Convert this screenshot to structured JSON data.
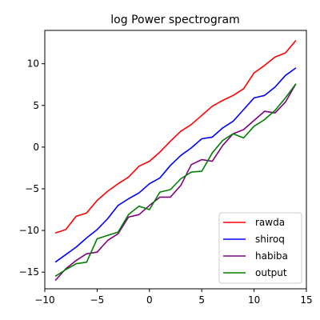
{
  "chart_data": {
    "type": "line",
    "title": "log Power spectrogram",
    "xlabel": "",
    "ylabel": "",
    "xlim": [
      -10,
      15
    ],
    "ylim": [
      -17,
      14
    ],
    "xticks": [
      -10,
      -5,
      0,
      5,
      10,
      15
    ],
    "yticks": [
      -15,
      -10,
      -5,
      0,
      5,
      10
    ],
    "grid": false,
    "legend": "bottom-right",
    "x": [
      -9,
      -8,
      -7,
      -6,
      -5,
      -4,
      -3,
      -2,
      -1,
      0,
      1,
      2,
      3,
      4,
      5,
      6,
      7,
      8,
      9,
      10,
      11,
      12,
      13,
      14
    ],
    "series": [
      {
        "name": "rawda",
        "color": "#ff0000",
        "values": [
          -10.3,
          -9.9,
          -8.3,
          -7.9,
          -6.4,
          -5.3,
          -4.4,
          -3.6,
          -2.3,
          -1.7,
          -0.6,
          0.7,
          1.9,
          2.7,
          3.8,
          4.9,
          5.6,
          6.2,
          7.0,
          8.9,
          9.8,
          10.8,
          11.3,
          12.8
        ]
      },
      {
        "name": "shiroq",
        "color": "#0000ff",
        "values": [
          -13.8,
          -12.9,
          -12.0,
          -10.9,
          -9.9,
          -8.6,
          -7.0,
          -6.2,
          -5.5,
          -4.4,
          -3.7,
          -2.2,
          -1.0,
          -0.1,
          1.0,
          1.2,
          2.3,
          3.1,
          4.5,
          5.9,
          6.2,
          7.2,
          8.6,
          9.5
        ]
      },
      {
        "name": "habiba",
        "color": "#800080",
        "values": [
          -16.0,
          -14.6,
          -13.6,
          -12.8,
          -12.6,
          -11.2,
          -10.4,
          -8.4,
          -8.1,
          -7.0,
          -6.0,
          -6.0,
          -4.6,
          -2.1,
          -1.5,
          -1.7,
          0.2,
          1.6,
          2.1,
          3.2,
          4.3,
          4.1,
          5.4,
          7.6
        ]
      },
      {
        "name": "output",
        "color": "#008000",
        "values": [
          -15.5,
          -14.7,
          -14.0,
          -13.8,
          -11.0,
          -10.6,
          -10.2,
          -8.1,
          -7.1,
          -7.5,
          -5.4,
          -5.1,
          -3.8,
          -3.0,
          -2.9,
          -0.7,
          0.8,
          1.6,
          1.1,
          2.5,
          3.3,
          4.4,
          5.9,
          7.6
        ]
      }
    ]
  }
}
